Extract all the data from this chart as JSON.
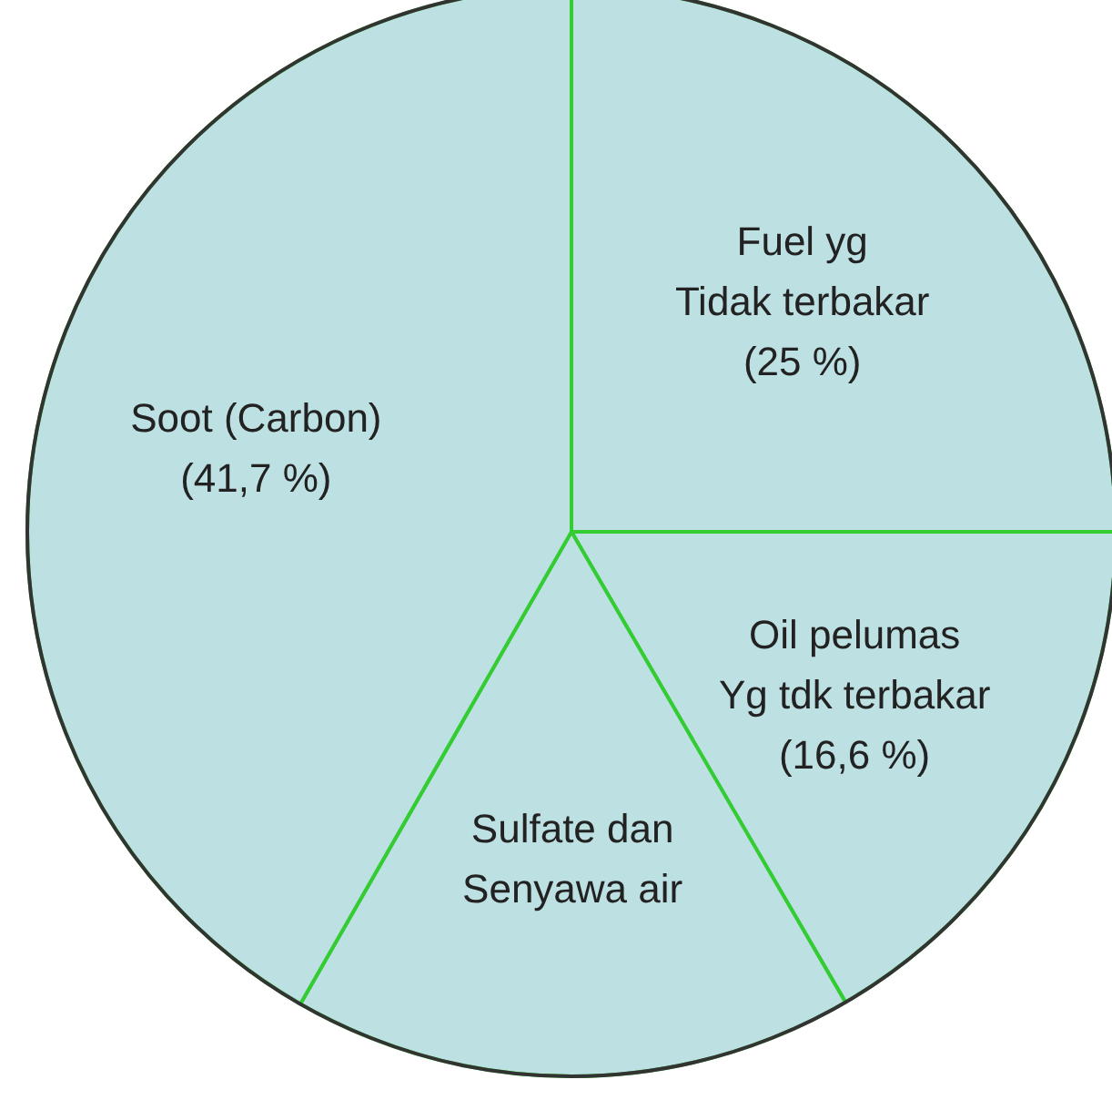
{
  "chart_data": {
    "type": "pie",
    "categories": [
      "Fuel yg\nTidak terbakar",
      "Oil pelumas\nYg tdk terbakar",
      "Sulfate dan\nSenyawa air",
      "Soot (Carbon)"
    ],
    "values": [
      25,
      16.6,
      16.7,
      41.7
    ],
    "value_labels": [
      "(25 %)",
      "(16,6 %)",
      null,
      "(41,7 %)"
    ],
    "colors": [
      "#bde0e2",
      "#bde0e2",
      "#bde0e2",
      "#bde0e2"
    ]
  }
}
